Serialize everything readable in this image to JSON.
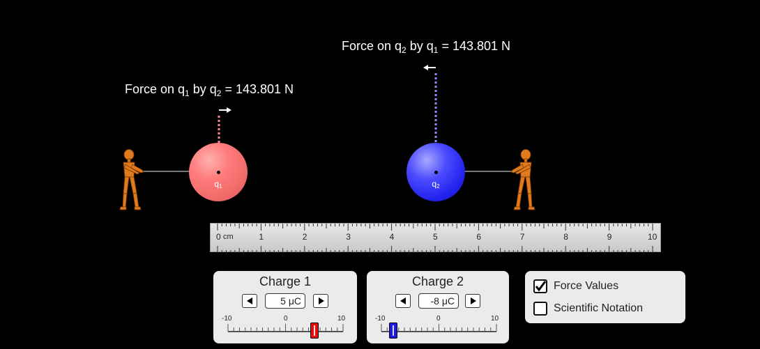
{
  "forces": {
    "q1": {
      "prefix": "Force on q",
      "sub1": "1",
      "mid": " by q",
      "sub2": "2",
      "value": " = 143.801 N"
    },
    "q2": {
      "prefix": "Force on q",
      "sub1": "2",
      "mid": " by q",
      "sub2": "1",
      "value": " = 143.801 N"
    }
  },
  "charges": {
    "q1": {
      "label": "q",
      "sub": "1",
      "color": "#ff7b7b"
    },
    "q2": {
      "label": "q",
      "sub": "2",
      "color": "#2a2aff"
    }
  },
  "ruler": {
    "unit": "cm",
    "numbers": [
      "0",
      "1",
      "2",
      "3",
      "4",
      "5",
      "6",
      "7",
      "8",
      "9",
      "10"
    ]
  },
  "controls": {
    "charge1": {
      "title": "Charge 1",
      "value": "5 μC",
      "min_label": "-10",
      "mid_label": "0",
      "max_label": "10",
      "level": 5,
      "thumb_color": "#e01010"
    },
    "charge2": {
      "title": "Charge 2",
      "value": "-8 μC",
      "min_label": "-10",
      "mid_label": "0",
      "max_label": "10",
      "level": -8,
      "thumb_color": "#1a1aee"
    }
  },
  "options": {
    "force_values": {
      "label": "Force Values",
      "checked": true
    },
    "scientific_notation": {
      "label": "Scientific Notation",
      "checked": false
    }
  },
  "colors": {
    "force_arrow_q1": "#ff8a8a",
    "force_arrow_q2": "#8a8aff"
  }
}
